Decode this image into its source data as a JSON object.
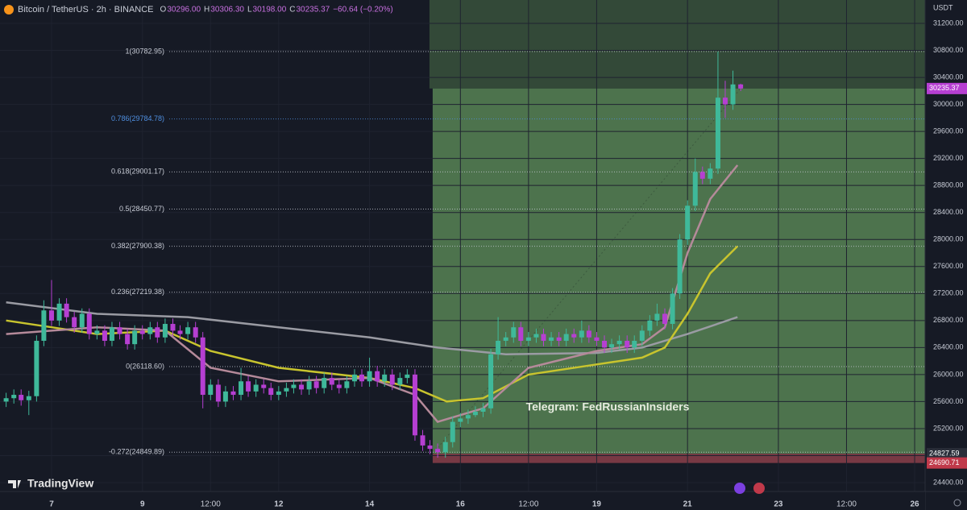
{
  "chart_data": {
    "type": "candlestick",
    "header": {
      "symbol": "Bitcoin / TetherUS · 2h · BINANCE",
      "ohlc": [
        {
          "key": "O",
          "value": "30296.00"
        },
        {
          "key": "H",
          "value": "30306.30"
        },
        {
          "key": "L",
          "value": "30198.00"
        },
        {
          "key": "C",
          "value": "30235.37"
        }
      ],
      "change": "−60.64 (−0.20%)"
    },
    "currency": "USDT",
    "watermark": "Telegram: FedRussianInsiders",
    "brand": "TradingView",
    "up_color": "#3fb99a",
    "down_color": "#b63fd2",
    "xlim": [
      5.865,
      26.23
    ],
    "ylim": [
      24269,
      31546
    ],
    "xticks": [
      7,
      9,
      {
        "value": 10.5,
        "label": "12:00"
      },
      12,
      14,
      16,
      {
        "value": 17.5,
        "label": "12:00"
      },
      19,
      21,
      23,
      {
        "value": 24.5,
        "label": "12:00"
      },
      26
    ],
    "yticks": [
      {
        "value": 24400,
        "label": "24400.00"
      },
      {
        "value": 24800,
        "label": "24800.00"
      },
      {
        "value": 25200,
        "label": "25200.00"
      },
      {
        "value": 25600,
        "label": "25600.00"
      },
      {
        "value": 26000,
        "label": "26000.00"
      },
      {
        "value": 26400,
        "label": "26400.00"
      },
      {
        "value": 26800,
        "label": "26800.00"
      },
      {
        "value": 27200,
        "label": "27200.00"
      },
      {
        "value": 27600,
        "label": "27600.00"
      },
      {
        "value": 28000,
        "label": "28000.00"
      },
      {
        "value": 28400,
        "label": "28400.00"
      },
      {
        "value": 28800,
        "label": "28800.00"
      },
      {
        "value": 29200,
        "label": "29200.00"
      },
      {
        "value": 29600,
        "label": "29600.00"
      },
      {
        "value": 30000,
        "label": "30000.00"
      },
      {
        "value": 30400,
        "label": "30400.00"
      },
      {
        "value": 30800,
        "label": "30800.00"
      },
      {
        "value": 31200,
        "label": "31200.00"
      }
    ],
    "fib_levels": [
      {
        "value": 30782.95,
        "label": "1(30782.95)",
        "color": "#c8ccd6"
      },
      {
        "value": 29784.78,
        "label": "0.786(29784.78)",
        "color": "#4f8fe0"
      },
      {
        "value": 29001.17,
        "label": "0.618(29001.17)",
        "color": "#c8ccd6"
      },
      {
        "value": 28450.77,
        "label": "0.5(28450.77)",
        "color": "#c8ccd6"
      },
      {
        "value": 27900.38,
        "label": "0.382(27900.38)",
        "color": "#c8ccd6"
      },
      {
        "value": 27219.38,
        "label": "0.236(27219.38)",
        "color": "#c8ccd6"
      },
      {
        "value": 26118.6,
        "label": "0(26118.60)",
        "color": "#c8ccd6"
      },
      {
        "value": 24849.89,
        "label": "-0.272(24849.89)",
        "color": "#c8ccd6"
      }
    ],
    "price_labels": [
      {
        "value": 30235.37,
        "label": "30235.37",
        "color": "#b63fd2"
      },
      {
        "value": 24827.59,
        "label": "24827.59",
        "color": "#2a2e39"
      },
      {
        "value": 24690.71,
        "label": "24690.71",
        "color": "#c0394a"
      }
    ],
    "position_start": 15.39,
    "x": [
      6,
      6.17,
      6.33,
      6.5,
      6.67,
      6.83,
      7,
      7.17,
      7.33,
      7.5,
      7.67,
      7.83,
      8,
      8.17,
      8.33,
      8.5,
      8.67,
      8.83,
      9,
      9.17,
      9.33,
      9.5,
      9.67,
      9.83,
      10,
      10.17,
      10.33,
      10.5,
      10.67,
      10.83,
      11,
      11.17,
      11.33,
      11.5,
      11.67,
      11.83,
      12,
      12.17,
      12.33,
      12.5,
      12.67,
      12.83,
      13,
      13.17,
      13.33,
      13.5,
      13.67,
      13.83,
      14,
      14.17,
      14.33,
      14.5,
      14.67,
      14.83,
      15,
      15.17,
      15.33,
      15.5,
      15.67,
      15.83,
      16,
      16.17,
      16.33,
      16.5,
      16.67,
      16.83,
      17,
      17.17,
      17.33,
      17.5,
      17.67,
      17.83,
      18,
      18.17,
      18.33,
      18.5,
      18.67,
      18.83,
      19,
      19.17,
      19.33,
      19.5,
      19.67,
      19.83,
      20,
      20.17,
      20.33,
      20.5,
      20.67,
      20.83,
      21,
      21.17,
      21.33,
      21.5,
      21.67,
      21.83,
      22,
      22.17
    ],
    "candles": [
      [
        25600,
        25730,
        25520,
        25650
      ],
      [
        25650,
        25780,
        25570,
        25700
      ],
      [
        25700,
        25780,
        25540,
        25620
      ],
      [
        25620,
        25760,
        25400,
        25680
      ],
      [
        25680,
        26580,
        25600,
        26500
      ],
      [
        26500,
        27100,
        26420,
        26950
      ],
      [
        26950,
        27400,
        26720,
        26800
      ],
      [
        26800,
        27130,
        26720,
        27050
      ],
      [
        27050,
        27130,
        26770,
        26850
      ],
      [
        26850,
        26930,
        26620,
        26700
      ],
      [
        26700,
        26980,
        26620,
        26900
      ],
      [
        26900,
        26980,
        26520,
        26600
      ],
      [
        26600,
        26730,
        26520,
        26650
      ],
      [
        26650,
        26730,
        26420,
        26500
      ],
      [
        26500,
        26780,
        26420,
        26700
      ],
      [
        26700,
        26780,
        26520,
        26600
      ],
      [
        26600,
        26680,
        26370,
        26450
      ],
      [
        26450,
        26730,
        26370,
        26650
      ],
      [
        26650,
        26730,
        26520,
        26600
      ],
      [
        26600,
        26780,
        26520,
        26700
      ],
      [
        26700,
        26780,
        26470,
        26550
      ],
      [
        26550,
        26830,
        26470,
        26750
      ],
      [
        26750,
        26830,
        26570,
        26650
      ],
      [
        26650,
        26730,
        26520,
        26600
      ],
      [
        26600,
        26780,
        26520,
        26700
      ],
      [
        26700,
        26780,
        26470,
        26550
      ],
      [
        26550,
        26630,
        25500,
        25700
      ],
      [
        25700,
        25930,
        25620,
        25850
      ],
      [
        25850,
        25930,
        25520,
        25600
      ],
      [
        25600,
        25830,
        25520,
        25750
      ],
      [
        25750,
        25830,
        25620,
        25700
      ],
      [
        25700,
        26100,
        25620,
        25900
      ],
      [
        25900,
        25980,
        25670,
        25750
      ],
      [
        25750,
        25930,
        25670,
        25850
      ],
      [
        25850,
        25930,
        25720,
        25800
      ],
      [
        25800,
        25880,
        25620,
        25700
      ],
      [
        25700,
        25830,
        25620,
        25750
      ],
      [
        25750,
        25880,
        25670,
        25800
      ],
      [
        25800,
        25930,
        25720,
        25850
      ],
      [
        25850,
        25930,
        25700,
        25780
      ],
      [
        25780,
        25980,
        25700,
        25900
      ],
      [
        25900,
        25980,
        25720,
        25800
      ],
      [
        25800,
        26030,
        25720,
        25950
      ],
      [
        25950,
        26030,
        25770,
        25850
      ],
      [
        25850,
        25930,
        25720,
        25800
      ],
      [
        25800,
        25980,
        25720,
        25900
      ],
      [
        25900,
        26080,
        25820,
        26000
      ],
      [
        26000,
        26080,
        25820,
        25900
      ],
      [
        25900,
        26250,
        25820,
        26050
      ],
      [
        26050,
        26130,
        25820,
        25900
      ],
      [
        25900,
        26080,
        25820,
        26000
      ],
      [
        26000,
        26080,
        25770,
        25850
      ],
      [
        25850,
        26030,
        25770,
        25950
      ],
      [
        25950,
        26080,
        25870,
        26000
      ],
      [
        26000,
        26080,
        25020,
        25100
      ],
      [
        25100,
        25180,
        24870,
        24950
      ],
      [
        24950,
        25030,
        24820,
        24900
      ],
      [
        24900,
        24980,
        24770,
        24850
      ],
      [
        24850,
        25080,
        24770,
        25000
      ],
      [
        25000,
        25380,
        24920,
        25300
      ],
      [
        25300,
        25430,
        25220,
        25350
      ],
      [
        25350,
        25480,
        25270,
        25400
      ],
      [
        25400,
        25530,
        25370,
        25450
      ],
      [
        25450,
        25580,
        25370,
        25500
      ],
      [
        25500,
        26380,
        25420,
        26300
      ],
      [
        26300,
        26850,
        26220,
        26500
      ],
      [
        26500,
        26630,
        26420,
        26550
      ],
      [
        26550,
        26780,
        26470,
        26700
      ],
      [
        26700,
        26780,
        26420,
        26500
      ],
      [
        26500,
        26630,
        26420,
        26550
      ],
      [
        26550,
        26680,
        26470,
        26600
      ],
      [
        26600,
        26680,
        26420,
        26500
      ],
      [
        26500,
        26630,
        26420,
        26550
      ],
      [
        26550,
        26630,
        26420,
        26500
      ],
      [
        26500,
        26680,
        26420,
        26600
      ],
      [
        26600,
        26680,
        26470,
        26550
      ],
      [
        26550,
        26800,
        26470,
        26650
      ],
      [
        26650,
        26730,
        26470,
        26550
      ],
      [
        26550,
        26630,
        26420,
        26500
      ],
      [
        26500,
        26580,
        26320,
        26400
      ],
      [
        26400,
        26530,
        26320,
        26450
      ],
      [
        26450,
        26580,
        26370,
        26500
      ],
      [
        26500,
        26580,
        26320,
        26400
      ],
      [
        26400,
        26580,
        26320,
        26500
      ],
      [
        26500,
        26730,
        26420,
        26650
      ],
      [
        26650,
        26880,
        26570,
        26800
      ],
      [
        26800,
        27050,
        26720,
        26900
      ],
      [
        26900,
        26980,
        26670,
        26750
      ],
      [
        26750,
        27280,
        26670,
        27200
      ],
      [
        27200,
        28080,
        27120,
        28000
      ],
      [
        28000,
        28580,
        27920,
        28500
      ],
      [
        28500,
        29200,
        28420,
        29000
      ],
      [
        29000,
        29080,
        28820,
        28900
      ],
      [
        28900,
        29130,
        28820,
        29050
      ],
      [
        29050,
        30782.95,
        28970,
        30100
      ],
      [
        30100,
        30350,
        29800,
        30000
      ],
      [
        30000,
        30500,
        29920,
        30296
      ],
      [
        30296,
        30306.3,
        30198,
        30235.37
      ]
    ],
    "series": [
      {
        "color": "#9a9ba3",
        "x": [
          6,
          8,
          10,
          12,
          14,
          15.5,
          17,
          19,
          20,
          21,
          22.1
        ],
        "values": [
          27070,
          26900,
          26850,
          26700,
          26550,
          26400,
          26300,
          26320,
          26400,
          26600,
          26850
        ]
      },
      {
        "color": "#c8c42e",
        "x": [
          6,
          7,
          8,
          9.5,
          10.5,
          12,
          14,
          15,
          15.7,
          16.5,
          17.5,
          19,
          20,
          20.5,
          21,
          21.5,
          22.1
        ],
        "values": [
          26800,
          26700,
          26600,
          26650,
          26350,
          26100,
          25950,
          25800,
          25600,
          25650,
          26000,
          26150,
          26250,
          26400,
          26900,
          27500,
          27900
        ]
      },
      {
        "color": "#b58a9a",
        "x": [
          6,
          7,
          8,
          9.5,
          10.5,
          12,
          14,
          15,
          15.5,
          16.5,
          17.5,
          19,
          20,
          20.5,
          21,
          21.5,
          22.1
        ],
        "values": [
          26600,
          26650,
          26700,
          26650,
          26100,
          25900,
          25950,
          25700,
          25300,
          25500,
          26100,
          26350,
          26450,
          26700,
          27800,
          28600,
          29100
        ]
      }
    ]
  }
}
